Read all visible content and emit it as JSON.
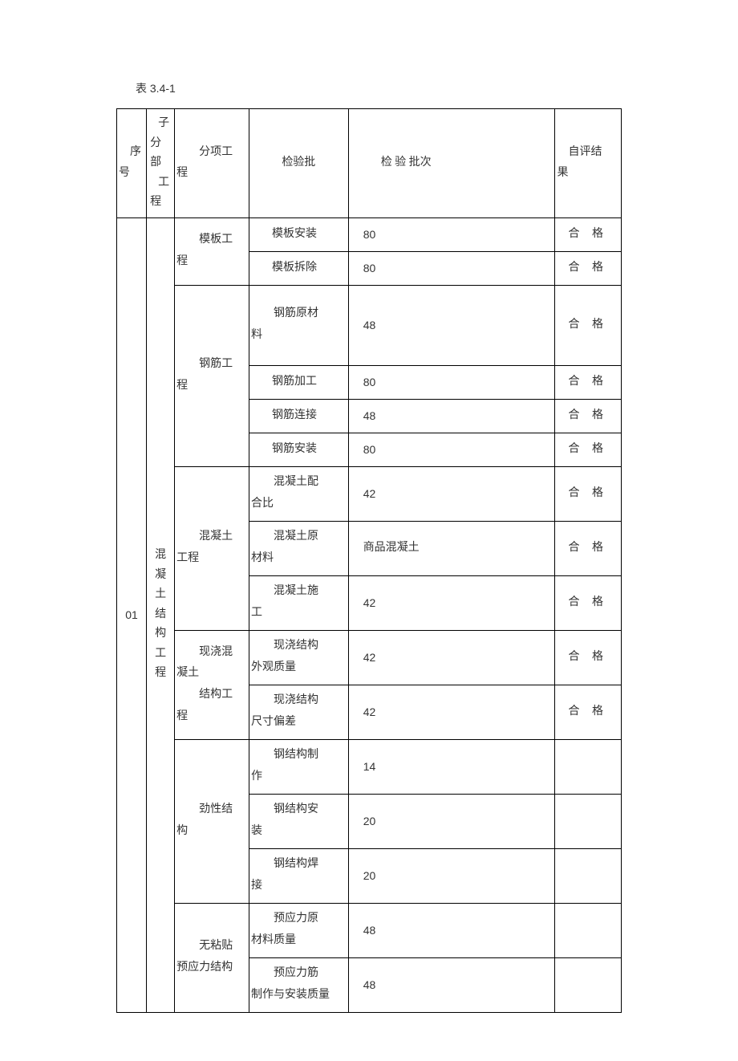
{
  "caption": "表 3.4-1",
  "headers": {
    "seq": "序 号",
    "sub": "子 分部 工 程",
    "item": "分项工 程",
    "inspect": "检验批",
    "batch": "检 验 批次",
    "result": "自评结 果"
  },
  "body": {
    "seq": "01",
    "sub": "混 凝 土 结 构 工 程",
    "groups": [
      {
        "item": "模板工 程",
        "rows": [
          {
            "inspect": "模板安装",
            "batch": "80",
            "result": "合 格",
            "h": "std",
            "indent": true,
            "batch_type": "num"
          },
          {
            "inspect": "模板拆除",
            "batch": "80",
            "result": "合 格",
            "h": "std",
            "indent": true,
            "batch_type": "num"
          }
        ]
      },
      {
        "item": "钢筋工 程",
        "rows": [
          {
            "inspect": "钢筋原材 料",
            "batch": "48",
            "result": "合 格",
            "h": "big",
            "indent": false,
            "batch_type": "num"
          },
          {
            "inspect": "钢筋加工",
            "batch": "80",
            "result": "合 格",
            "h": "std",
            "indent": true,
            "batch_type": "num"
          },
          {
            "inspect": "钢筋连接",
            "batch": "48",
            "result": "合 格",
            "h": "std",
            "indent": true,
            "batch_type": "num"
          },
          {
            "inspect": "钢筋安装",
            "batch": "80",
            "result": "合 格",
            "h": "std",
            "indent": true,
            "batch_type": "num"
          }
        ]
      },
      {
        "item": "混凝土 工程",
        "rows": [
          {
            "inspect": "混凝土配 合比",
            "batch": "42",
            "result": "合 格",
            "h": "med",
            "indent": false,
            "batch_type": "num"
          },
          {
            "inspect": "混凝土原 材料",
            "batch": "商品混凝土",
            "result": "合 格",
            "h": "med",
            "indent": false,
            "batch_type": "text"
          },
          {
            "inspect": "混凝土施 工",
            "batch": "42",
            "result": "合 格",
            "h": "med",
            "indent": false,
            "batch_type": "num"
          }
        ]
      },
      {
        "item": "现浇混 凝土 结构工 程",
        "rows": [
          {
            "inspect": "现浇结构 外观质量",
            "batch": "42",
            "result": "合 格",
            "h": "med",
            "indent": false,
            "batch_type": "num"
          },
          {
            "inspect": "现浇结构 尺寸偏差",
            "batch": "42",
            "result": "合 格",
            "h": "med",
            "indent": false,
            "batch_type": "num"
          }
        ]
      },
      {
        "item": "劲性结 构",
        "rows": [
          {
            "inspect": "钢结构制 作",
            "batch": "14",
            "result": "",
            "h": "med",
            "indent": false,
            "batch_type": "num"
          },
          {
            "inspect": "钢结构安 装",
            "batch": "20",
            "result": "",
            "h": "med",
            "indent": false,
            "batch_type": "num"
          },
          {
            "inspect": "钢结构焊 接",
            "batch": "20",
            "result": "",
            "h": "med",
            "indent": false,
            "batch_type": "num"
          }
        ]
      },
      {
        "item": "无粘贴 预应力结构",
        "rows": [
          {
            "inspect": "预应力原 材料质量",
            "batch": "48",
            "result": "",
            "h": "med",
            "indent": false,
            "batch_type": "num"
          },
          {
            "inspect": "预应力筋 制作与安装质量",
            "batch": "48",
            "result": "",
            "h": "med",
            "indent": false,
            "batch_type": "num"
          }
        ]
      }
    ]
  }
}
